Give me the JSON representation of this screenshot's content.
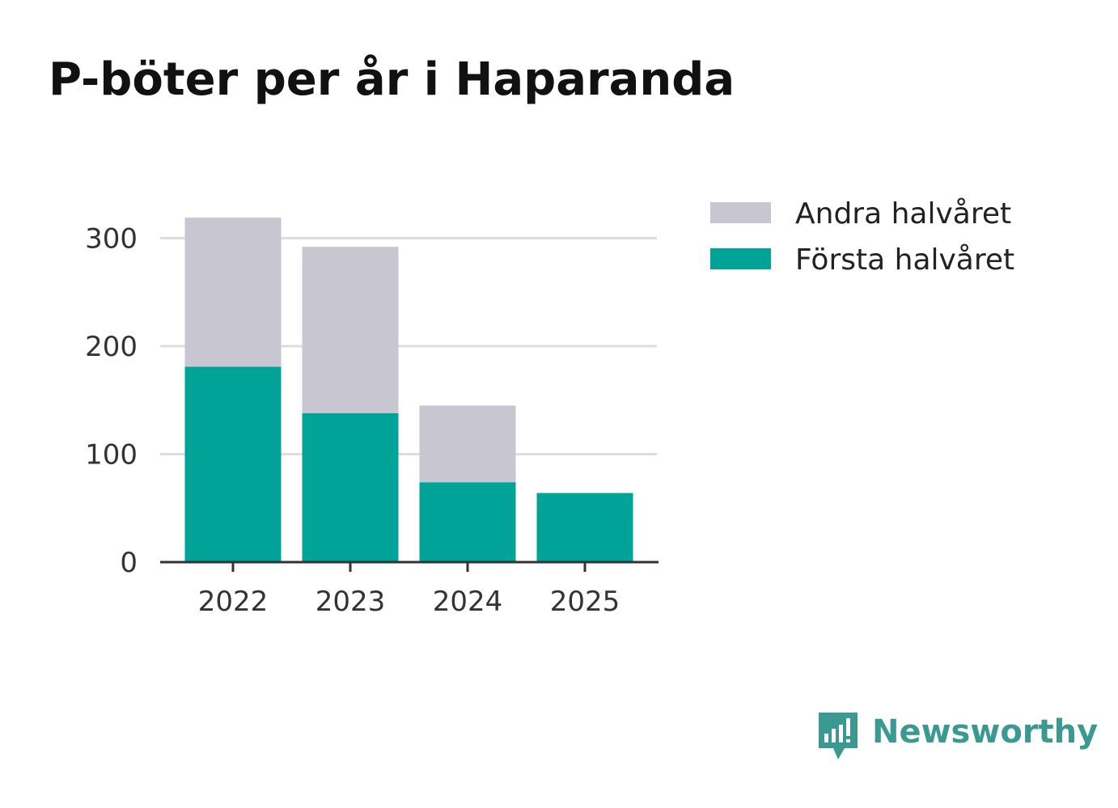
{
  "title": "P-böter per år i Haparanda",
  "chart_data": {
    "type": "bar",
    "stacked": true,
    "categories": [
      "2022",
      "2023",
      "2024",
      "2025"
    ],
    "series": [
      {
        "name": "Första halvåret",
        "color": "#00a398",
        "values": [
          181,
          138,
          74,
          64
        ]
      },
      {
        "name": "Andra halvåret",
        "color": "#c7c6d1",
        "values": [
          138,
          154,
          71,
          0
        ]
      }
    ],
    "yticks": [
      0,
      100,
      200,
      300
    ],
    "ylim": [
      0,
      320
    ],
    "grid": true,
    "legend_position": "top-right",
    "legend_order": [
      "Andra halvåret",
      "Första halvåret"
    ]
  },
  "brand": {
    "name": "Newsworthy",
    "color": "#3a9a91",
    "icon": "newsworthy-logo-icon"
  }
}
